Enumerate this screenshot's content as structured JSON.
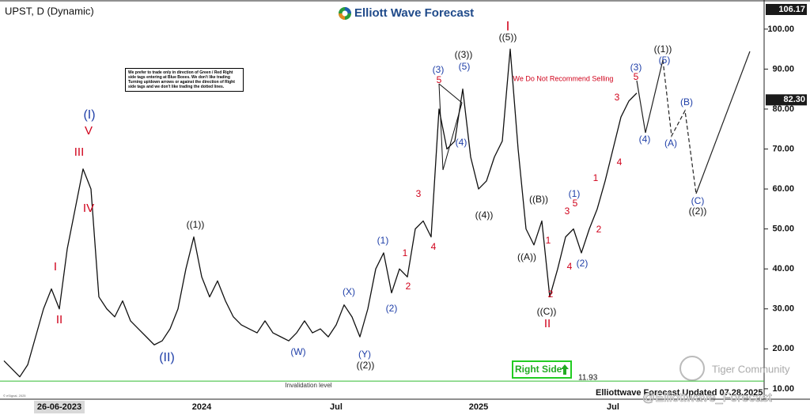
{
  "chart_data": {
    "type": "line",
    "title": "UPST, D (Dynamic)",
    "brand": "Elliott Wave Forecast",
    "categories": [
      null,
      null,
      null,
      null,
      null,
      null,
      null,
      "26-06-2023",
      null,
      null,
      null,
      null,
      null,
      null,
      null,
      null,
      null,
      null,
      null,
      null,
      null,
      null,
      null,
      null,
      null,
      "2024",
      null,
      null,
      null,
      null,
      null,
      null,
      null,
      null,
      null,
      null,
      null,
      null,
      null,
      null,
      null,
      null,
      "Jul",
      null,
      null,
      null,
      null,
      null,
      null,
      null,
      null,
      null,
      null,
      null,
      null,
      null,
      null,
      null,
      null,
      null,
      "2025",
      null,
      null,
      null,
      null,
      null,
      null,
      null,
      null,
      null,
      null,
      null,
      null,
      null,
      null,
      null,
      null,
      "Jul",
      null,
      null,
      null
    ],
    "values": [
      17,
      15,
      13,
      16,
      23,
      30,
      35,
      30,
      45,
      55,
      65,
      60,
      33,
      30,
      28,
      32,
      27,
      25,
      23,
      21,
      22,
      25,
      30,
      40,
      48,
      38,
      33,
      37,
      32,
      28,
      26,
      25,
      24,
      27,
      24,
      23,
      22,
      24,
      27,
      24,
      25,
      23,
      26,
      31,
      28,
      23,
      30,
      40,
      44,
      34,
      40,
      38,
      50,
      52,
      48,
      80,
      70,
      72,
      85,
      68,
      60,
      62,
      68,
      72,
      95,
      70,
      50,
      46,
      52,
      33,
      40,
      48,
      50,
      44,
      50,
      55,
      62,
      70,
      78,
      82,
      84
    ],
    "color": "#111111",
    "ylim": [
      7.4,
      106.3
    ],
    "yticks": [
      {
        "value": 10,
        "label": "10.00"
      },
      {
        "value": 20,
        "label": "20.00"
      },
      {
        "value": 30,
        "label": "30.00"
      },
      {
        "value": 40,
        "label": "40.00"
      },
      {
        "value": 50,
        "label": "50.00"
      },
      {
        "value": 60,
        "label": "60.00"
      },
      {
        "value": 70,
        "label": "70.00"
      },
      {
        "value": 80,
        "label": "80.00"
      },
      {
        "value": 90,
        "label": "90.00"
      },
      {
        "value": 100,
        "label": "100.00"
      }
    ],
    "price_markers": [
      {
        "value": 106.17
      },
      {
        "value": 82.3,
        "label": "82.30"
      }
    ],
    "invalidation": {
      "label": "Invalidation level",
      "value": 11.93,
      "color": "#33bb33"
    },
    "note": "We prefer to trade only in direction of Green / Red Right side tags entering at Blue Boxes. We don't like trading Turning up/down arrows or against the direction of Right side tags and we don't like trading the dotted lines.",
    "right_side_tag": "Right Side",
    "footer": "Elliottwave Forecast Updated 07.28.2025",
    "watermark": "Tiger Community",
    "handle": "@Elliottwave_Forecast",
    "copyright": "© eSignal, 2025",
    "annotations": [
      {
        "text": "I",
        "color": "#d0021b"
      },
      {
        "text": "II",
        "color": "#d0021b"
      },
      {
        "text": "III",
        "color": "#d0021b"
      },
      {
        "text": "IV",
        "color": "#d0021b"
      },
      {
        "text": "V",
        "color": "#d0021b"
      },
      {
        "text": "(I)",
        "color": "#1f3fa8"
      },
      {
        "text": "(II)",
        "color": "#1f3fa8"
      },
      {
        "text": "((1))",
        "color": "#111111"
      },
      {
        "text": "(W)",
        "color": "#1f3fa8"
      },
      {
        "text": "(X)",
        "color": "#1f3fa8"
      },
      {
        "text": "(Y)",
        "color": "#1f3fa8"
      },
      {
        "text": "((2))",
        "color": "#111111"
      },
      {
        "text": "(1)",
        "color": "#1f3fa8"
      },
      {
        "text": "(2)",
        "color": "#1f3fa8"
      },
      {
        "text": "1",
        "color": "#d0021b"
      },
      {
        "text": "2",
        "color": "#d0021b"
      },
      {
        "text": "3",
        "color": "#d0021b"
      },
      {
        "text": "4",
        "color": "#d0021b"
      },
      {
        "text": "(3)",
        "color": "#1f3fa8"
      },
      {
        "text": "5",
        "color": "#d0021b"
      },
      {
        "text": "((3))",
        "color": "#111111"
      },
      {
        "text": "(5)",
        "color": "#1f3fa8"
      },
      {
        "text": "(4)",
        "color": "#1f3fa8"
      },
      {
        "text": "((4))",
        "color": "#111111"
      },
      {
        "text": "I",
        "color": "#d0021b"
      },
      {
        "text": "((5))",
        "color": "#111111"
      },
      {
        "text": "We Do Not Recommend Selling",
        "color": "#d0021b"
      },
      {
        "text": "((B))",
        "color": "#111111"
      },
      {
        "text": "((A))",
        "color": "#111111"
      },
      {
        "text": "((C))",
        "color": "#111111"
      },
      {
        "text": "II",
        "color": "#d0021b"
      },
      {
        "text": "2",
        "color": "#d0021b"
      },
      {
        "text": "1",
        "color": "#d0021b"
      },
      {
        "text": "3",
        "color": "#d0021b"
      },
      {
        "text": "4",
        "color": "#d0021b"
      },
      {
        "text": "5",
        "color": "#d0021b"
      },
      {
        "text": "(1)",
        "color": "#1f3fa8"
      },
      {
        "text": "(2)",
        "color": "#1f3fa8"
      },
      {
        "text": "2",
        "color": "#d0021b"
      },
      {
        "text": "1",
        "color": "#d0021b"
      },
      {
        "text": "4",
        "color": "#d0021b"
      },
      {
        "text": "3",
        "color": "#d0021b"
      },
      {
        "text": "(3)",
        "color": "#1f3fa8"
      },
      {
        "text": "5",
        "color": "#d0021b"
      },
      {
        "text": "((1))",
        "color": "#111111"
      },
      {
        "text": "(5)",
        "color": "#1f3fa8"
      },
      {
        "text": "(4)",
        "color": "#1f3fa8"
      },
      {
        "text": "(A)",
        "color": "#1f3fa8"
      },
      {
        "text": "(B)",
        "color": "#1f3fa8"
      },
      {
        "text": "(C)",
        "color": "#1f3fa8"
      },
      {
        "text": "((2))",
        "color": "#111111"
      }
    ]
  }
}
